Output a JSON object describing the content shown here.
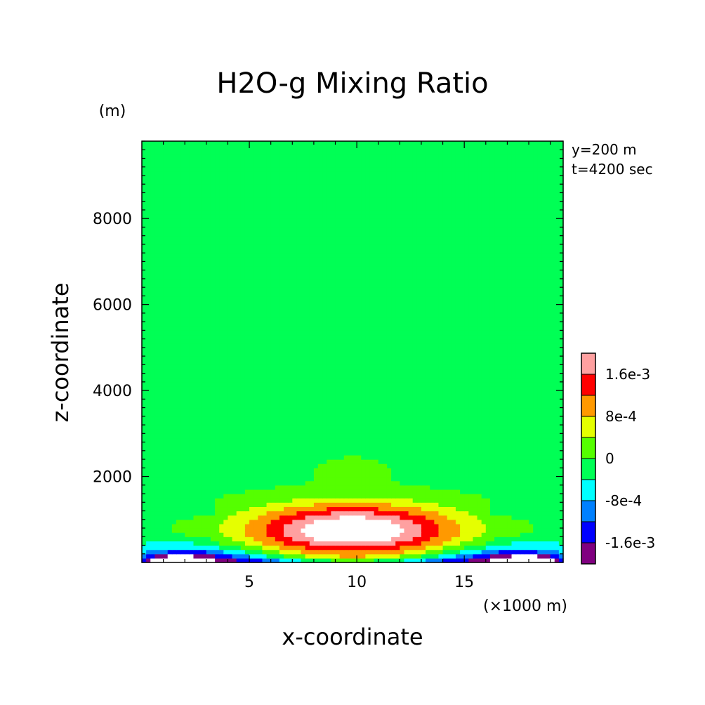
{
  "chart_data": {
    "type": "heatmap",
    "title": "H2O-g Mixing Ratio",
    "xlabel": "x-coordinate",
    "ylabel": "z-coordinate",
    "x_unit": "(×1000 m)",
    "y_unit": "(m)",
    "annotations": [
      "y=200 m",
      "t=4200 sec"
    ],
    "xlim": [
      0,
      19.6
    ],
    "ylim": [
      0,
      9800
    ],
    "x_ticks": [
      5,
      10,
      15
    ],
    "x_tick_labels": [
      "5",
      "10",
      "15"
    ],
    "y_ticks": [
      2000,
      4000,
      6000,
      8000
    ],
    "y_tick_labels": [
      "2000",
      "4000",
      "6000",
      "8000"
    ],
    "colorbar": {
      "levels": [
        -0.002,
        -0.0016,
        -0.0012,
        -0.0008,
        -0.0004,
        0,
        0.0004,
        0.0008,
        0.0012,
        0.0016,
        0.002
      ],
      "colors": [
        "#800080",
        "#0000ff",
        "#0080ff",
        "#00ffff",
        "#00ff55",
        "#55ff00",
        "#e5ff00",
        "#ff9900",
        "#ff0000",
        "#ffa0a0"
      ],
      "labels": [
        "1.6e-3",
        "8e-4",
        "0",
        "-8e-4",
        "-1.6e-3"
      ],
      "label_values": [
        0.0016,
        0.0008,
        0,
        -0.0008,
        -0.0016
      ],
      "over_color": "#ffffff",
      "under_color": "#ffffff"
    },
    "grid": false,
    "legend": "right colorbar"
  }
}
